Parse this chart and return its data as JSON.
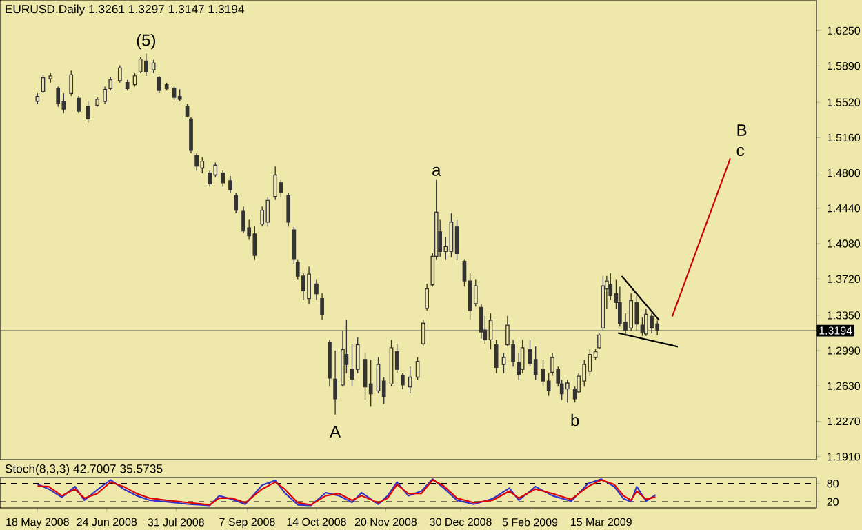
{
  "chart_data": [
    {
      "type": "candlestick",
      "title": "EURUSD.Daily 1.3261 1.3297 1.3147 1.3194",
      "color": "#333333",
      "x": [
        "2008-05-18",
        "2008-05-21",
        "2008-05-25",
        "2008-05-29",
        "2008-06-01",
        "2008-06-05",
        "2008-06-09",
        "2008-06-14",
        "2008-06-19",
        "2008-06-23",
        "2008-06-26",
        "2008-07-01",
        "2008-07-05",
        "2008-07-09",
        "2008-07-12",
        "2008-07-15",
        "2008-07-19",
        "2008-07-22",
        "2008-07-26",
        "2008-07-30",
        "2008-08-02",
        "2008-08-06",
        "2008-08-08",
        "2008-08-11",
        "2008-08-14",
        "2008-08-18",
        "2008-08-21",
        "2008-08-25",
        "2008-08-29",
        "2008-09-01",
        "2008-09-05",
        "2008-09-08",
        "2008-09-11",
        "2008-09-15",
        "2008-09-18",
        "2008-09-22",
        "2008-09-25",
        "2008-09-29",
        "2008-10-02",
        "2008-10-04",
        "2008-10-07",
        "2008-10-10",
        "2008-10-14",
        "2008-10-17",
        "2008-10-21",
        "2008-10-24",
        "2008-10-28",
        "2008-10-30",
        "2008-11-02",
        "2008-11-05",
        "2008-11-09",
        "2008-11-12",
        "2008-11-16",
        "2008-11-19",
        "2008-11-23",
        "2008-11-26",
        "2008-11-29",
        "2008-12-03",
        "2008-12-07",
        "2008-12-10",
        "2008-12-12",
        "2008-12-15",
        "2008-12-17",
        "2008-12-19",
        "2008-12-22",
        "2008-12-25",
        "2008-12-28",
        "2009-01-01",
        "2009-01-04",
        "2009-01-07",
        "2009-01-10",
        "2009-01-12",
        "2009-01-15",
        "2009-01-18",
        "2009-01-22",
        "2009-01-24",
        "2009-01-27",
        "2009-01-30",
        "2009-02-01",
        "2009-02-05",
        "2009-02-08",
        "2009-02-12",
        "2009-02-15",
        "2009-02-17",
        "2009-02-20",
        "2009-02-22",
        "2009-02-25",
        "2009-03-01",
        "2009-03-03",
        "2009-03-06",
        "2009-03-09",
        "2009-03-12",
        "2009-03-14",
        "2009-03-16",
        "2009-03-18",
        "2009-03-20",
        "2009-03-23",
        "2009-03-25",
        "2009-03-28",
        "2009-03-31",
        "2009-04-03",
        "2009-04-06",
        "2009-04-08",
        "2009-04-11",
        "2009-04-14"
      ],
      "ohlc": [
        [
          1.553,
          1.5612,
          1.5503,
          1.558
        ],
        [
          1.563,
          1.5802,
          1.5612,
          1.577
        ],
        [
          1.576,
          1.5816,
          1.572,
          1.579
        ],
        [
          1.566,
          1.568,
          1.5476,
          1.551
        ],
        [
          1.553,
          1.5612,
          1.5408,
          1.545
        ],
        [
          1.561,
          1.5843,
          1.5585,
          1.58
        ],
        [
          1.556,
          1.5585,
          1.5408,
          1.543
        ],
        [
          1.548,
          1.553,
          1.5313,
          1.535
        ],
        [
          1.549,
          1.5571,
          1.5476,
          1.555
        ],
        [
          1.553,
          1.568,
          1.5503,
          1.565
        ],
        [
          1.566,
          1.5775,
          1.5639,
          1.575
        ],
        [
          1.574,
          1.5897,
          1.572,
          1.587
        ],
        [
          1.572,
          1.5748,
          1.5639,
          1.566
        ],
        [
          1.57,
          1.5816,
          1.568,
          1.579
        ],
        [
          1.583,
          1.5978,
          1.5816,
          1.596
        ],
        [
          1.594,
          1.6019,
          1.5789,
          1.583
        ],
        [
          1.585,
          1.5951,
          1.5816,
          1.592
        ],
        [
          1.577,
          1.5789,
          1.5612,
          1.564
        ],
        [
          1.57,
          1.572,
          1.5639,
          1.566
        ],
        [
          1.566,
          1.568,
          1.5544,
          1.557
        ],
        [
          1.558,
          1.5653,
          1.553,
          1.555
        ],
        [
          1.548,
          1.5503,
          1.5367,
          1.538
        ],
        [
          1.535,
          1.5367,
          1.5001,
          1.503
        ],
        [
          1.498,
          1.5001,
          1.4824,
          1.487
        ],
        [
          1.485,
          1.496,
          1.4797,
          1.492
        ],
        [
          1.48,
          1.4824,
          1.4661,
          1.469
        ],
        [
          1.478,
          1.4906,
          1.4756,
          1.488
        ],
        [
          1.48,
          1.4824,
          1.4661,
          1.47
        ],
        [
          1.472,
          1.477,
          1.4593,
          1.463
        ],
        [
          1.457,
          1.4593,
          1.439,
          1.442
        ],
        [
          1.441,
          1.4458,
          1.4186,
          1.421
        ],
        [
          1.424,
          1.4322,
          1.4118,
          1.416
        ],
        [
          1.418,
          1.4254,
          1.3914,
          1.396
        ],
        [
          1.428,
          1.4458,
          1.4254,
          1.442
        ],
        [
          1.43,
          1.4553,
          1.4254,
          1.452
        ],
        [
          1.456,
          1.4865,
          1.4525,
          1.478
        ],
        [
          1.47,
          1.4729,
          1.4553,
          1.46
        ],
        [
          1.457,
          1.4593,
          1.4254,
          1.43
        ],
        [
          1.422,
          1.4254,
          1.3873,
          1.392
        ],
        [
          1.389,
          1.3914,
          1.3711,
          1.375
        ],
        [
          1.375,
          1.3778,
          1.3507,
          1.36
        ],
        [
          1.352,
          1.3846,
          1.3466,
          1.377
        ],
        [
          1.367,
          1.3711,
          1.3507,
          1.357
        ],
        [
          1.352,
          1.3575,
          1.3303,
          1.336
        ],
        [
          1.307,
          1.3099,
          1.2624,
          1.271
        ],
        [
          1.27,
          1.2991,
          1.2339,
          1.25
        ],
        [
          1.264,
          1.3194,
          1.2624,
          1.3
        ],
        [
          1.295,
          1.3303,
          1.276,
          1.285
        ],
        [
          1.28,
          1.3058,
          1.2624,
          1.27
        ],
        [
          1.28,
          1.3126,
          1.276,
          1.305
        ],
        [
          1.29,
          1.2964,
          1.2488,
          1.262
        ],
        [
          1.265,
          1.2896,
          1.242,
          1.255
        ],
        [
          1.258,
          1.2923,
          1.2556,
          1.285
        ],
        [
          1.268,
          1.2719,
          1.2448,
          1.252
        ],
        [
          1.265,
          1.3099,
          1.2624,
          1.302
        ],
        [
          1.298,
          1.3058,
          1.276,
          1.28
        ],
        [
          1.274,
          1.276,
          1.2597,
          1.264
        ],
        [
          1.262,
          1.2828,
          1.2556,
          1.272
        ],
        [
          1.272,
          1.2923,
          1.2692,
          1.288
        ],
        [
          1.306,
          1.3303,
          1.3032,
          1.327
        ],
        [
          1.342,
          1.367,
          1.3398,
          1.362
        ],
        [
          1.366,
          1.3982,
          1.3643,
          1.395
        ],
        [
          1.395,
          1.4729,
          1.3914,
          1.44
        ],
        [
          1.42,
          1.4322,
          1.3941,
          1.4
        ],
        [
          1.4,
          1.4145,
          1.3914,
          1.405
        ],
        [
          1.4,
          1.439,
          1.3941,
          1.43
        ],
        [
          1.425,
          1.4322,
          1.3914,
          1.398
        ],
        [
          1.39,
          1.3914,
          1.3643,
          1.37
        ],
        [
          1.37,
          1.3778,
          1.3303,
          1.34
        ],
        [
          1.347,
          1.3711,
          1.3439,
          1.365
        ],
        [
          1.343,
          1.3466,
          1.3113,
          1.318
        ],
        [
          1.32,
          1.3344,
          1.3058,
          1.31
        ],
        [
          1.31,
          1.3371,
          1.3004,
          1.33
        ],
        [
          1.305,
          1.3099,
          1.276,
          1.282
        ],
        [
          1.285,
          1.2964,
          1.276,
          1.292
        ],
        [
          1.305,
          1.3344,
          1.3032,
          1.325
        ],
        [
          1.305,
          1.3099,
          1.2828,
          1.288
        ],
        [
          1.287,
          1.2964,
          1.2692,
          1.275
        ],
        [
          1.28,
          1.3099,
          1.276,
          1.302
        ],
        [
          1.3,
          1.3099,
          1.2828,
          1.286
        ],
        [
          1.29,
          1.3032,
          1.2692,
          1.275
        ],
        [
          1.28,
          1.2896,
          1.2624,
          1.268
        ],
        [
          1.268,
          1.276,
          1.2529,
          1.258
        ],
        [
          1.277,
          1.2964,
          1.2733,
          1.292
        ],
        [
          1.28,
          1.2828,
          1.2624,
          1.266
        ],
        [
          1.265,
          1.2692,
          1.2488,
          1.255
        ],
        [
          1.26,
          1.2692,
          1.2461,
          1.266
        ],
        [
          1.26,
          1.2624,
          1.2461,
          1.25
        ],
        [
          1.257,
          1.276,
          1.2556,
          1.273
        ],
        [
          1.268,
          1.2896,
          1.2624,
          1.285
        ],
        [
          1.278,
          1.3004,
          1.2733,
          1.295
        ],
        [
          1.292,
          1.3004,
          1.2896,
          1.298
        ],
        [
          1.302,
          1.3167,
          1.3004,
          1.315
        ],
        [
          1.322,
          1.3751,
          1.3194,
          1.365
        ],
        [
          1.362,
          1.3751,
          1.3412,
          1.37
        ],
        [
          1.366,
          1.3778,
          1.3507,
          1.355
        ],
        [
          1.357,
          1.3711,
          1.3412,
          1.348
        ],
        [
          1.348,
          1.3643,
          1.3235,
          1.327
        ],
        [
          1.328,
          1.3371,
          1.314,
          1.32
        ],
        [
          1.322,
          1.3575,
          1.3194,
          1.35
        ],
        [
          1.348,
          1.3548,
          1.3194,
          1.326
        ],
        [
          1.325,
          1.333,
          1.314,
          1.318
        ],
        [
          1.316,
          1.3412,
          1.314,
          1.336
        ],
        [
          1.334,
          1.3371,
          1.3167,
          1.322
        ],
        [
          1.3261,
          1.3297,
          1.3147,
          1.3194
        ]
      ],
      "series": [
        {
          "type": "line",
          "color": "#cc0000",
          "x": [
            "2009-04-22",
            "2009-05-23"
          ],
          "values": [
            1.334,
            1.495
          ]
        },
        {
          "type": "line",
          "color": "#000000",
          "x": [
            "2009-03-26",
            "2009-04-15"
          ],
          "values": [
            1.375,
            1.33
          ]
        },
        {
          "type": "line",
          "color": "#000000",
          "x": [
            "2009-03-24",
            "2009-04-25"
          ],
          "values": [
            1.317,
            1.303
          ]
        }
      ],
      "ref_lines": [
        {
          "axis": "y",
          "value": 1.3194,
          "label": "1.3194",
          "color": "#555555"
        }
      ],
      "annotations": [
        {
          "text": "(5)",
          "x": "2008-07-15",
          "y": 1.6019
        },
        {
          "text": "A",
          "x": "2008-10-24",
          "y": 1.2339
        },
        {
          "text": "a",
          "x": "2008-12-17",
          "y": 1.4729
        },
        {
          "text": "b",
          "x": "2009-03-01",
          "y": 1.2461
        },
        {
          "text": "B",
          "x": "2009-05-23",
          "y": 1.495
        },
        {
          "text": "c",
          "x": "2009-05-23",
          "y": 1.495
        }
      ],
      "xlim": [
        "2008-04-28",
        "2009-07-08"
      ],
      "ylim": [
        1.188,
        1.6562
      ],
      "yticks": [
        {
          "value": 1.191,
          "label": "1.1910"
        },
        {
          "value": 1.227,
          "label": "1.2270"
        },
        {
          "value": 1.263,
          "label": "1.2630"
        },
        {
          "value": 1.299,
          "label": "1.2990"
        },
        {
          "value": 1.335,
          "label": "1.3350"
        },
        {
          "value": 1.372,
          "label": "1.3720"
        },
        {
          "value": 1.408,
          "label": "1.4080"
        },
        {
          "value": 1.444,
          "label": "1.4440"
        },
        {
          "value": 1.48,
          "label": "1.4800"
        },
        {
          "value": 1.516,
          "label": "1.5160"
        },
        {
          "value": 1.552,
          "label": "1.5520"
        },
        {
          "value": 1.589,
          "label": "1.5890"
        },
        {
          "value": 1.625,
          "label": "1.6250"
        }
      ],
      "tick_labels": "y"
    },
    {
      "type": "line",
      "title": "Stoch(8,3,3) 42.7007 35.5735",
      "x": [
        "2008-05-18",
        "2008-05-24",
        "2008-05-31",
        "2008-06-07",
        "2008-06-12",
        "2008-06-19",
        "2008-06-26",
        "2008-07-03",
        "2008-07-10",
        "2008-07-17",
        "2008-07-26",
        "2008-08-07",
        "2008-08-18",
        "2008-08-23",
        "2008-08-30",
        "2008-09-06",
        "2008-09-15",
        "2008-09-22",
        "2008-09-27",
        "2008-10-04",
        "2008-10-11",
        "2008-10-19",
        "2008-10-26",
        "2008-11-02",
        "2008-11-07",
        "2008-11-16",
        "2008-11-21",
        "2008-11-26",
        "2008-12-02",
        "2008-12-09",
        "2008-12-15",
        "2008-12-21",
        "2008-12-28",
        "2009-01-06",
        "2009-01-16",
        "2009-01-25",
        "2009-01-30",
        "2009-02-08",
        "2009-02-17",
        "2009-02-27",
        "2009-03-08",
        "2009-03-15",
        "2009-03-22",
        "2009-03-27",
        "2009-03-31",
        "2009-04-03",
        "2009-04-08",
        "2009-04-13"
      ],
      "series": [
        {
          "color": "#3333cc",
          "values": [
            78,
            62,
            35,
            70,
            25,
            60,
            92,
            62,
            40,
            25,
            20,
            12,
            8,
            40,
            28,
            12,
            75,
            90,
            50,
            10,
            8,
            50,
            40,
            18,
            50,
            12,
            40,
            85,
            40,
            55,
            95,
            65,
            25,
            12,
            30,
            65,
            25,
            70,
            40,
            22,
            80,
            95,
            70,
            30,
            20,
            70,
            22,
            43
          ]
        },
        {
          "color": "#dd0000",
          "values": [
            72,
            70,
            40,
            62,
            32,
            47,
            85,
            70,
            47,
            32,
            25,
            17,
            10,
            32,
            32,
            17,
            62,
            85,
            62,
            17,
            10,
            40,
            47,
            25,
            40,
            17,
            32,
            77,
            47,
            47,
            92,
            72,
            32,
            17,
            25,
            55,
            32,
            62,
            47,
            28,
            70,
            92,
            77,
            40,
            25,
            55,
            28,
            36
          ]
        }
      ],
      "ref_lines": [
        {
          "axis": "y",
          "value": 80,
          "line_style": "dashed",
          "color": "#000000"
        },
        {
          "axis": "y",
          "value": 20,
          "line_style": "dashed",
          "color": "#000000"
        }
      ],
      "xlim": [
        "2008-04-28",
        "2009-07-08"
      ],
      "ylim": [
        0,
        100
      ],
      "yticks": [
        20,
        80
      ],
      "xticks": [
        {
          "value": "2008-05-18",
          "label": "18 May 2008"
        },
        {
          "value": "2008-06-24",
          "label": "24 Jun 2008"
        },
        {
          "value": "2008-07-31",
          "label": "31 Jul 2008"
        },
        {
          "value": "2008-09-07",
          "label": "7 Sep 2008"
        },
        {
          "value": "2008-10-14",
          "label": "14 Oct 2008"
        },
        {
          "value": "2008-11-20",
          "label": "20 Nov 2008"
        },
        {
          "value": "2008-12-30",
          "label": "30 Dec 2008"
        },
        {
          "value": "2009-02-05",
          "label": "5 Feb 2009"
        },
        {
          "value": "2009-03-15",
          "label": "15 Mar 2009"
        }
      ]
    }
  ]
}
